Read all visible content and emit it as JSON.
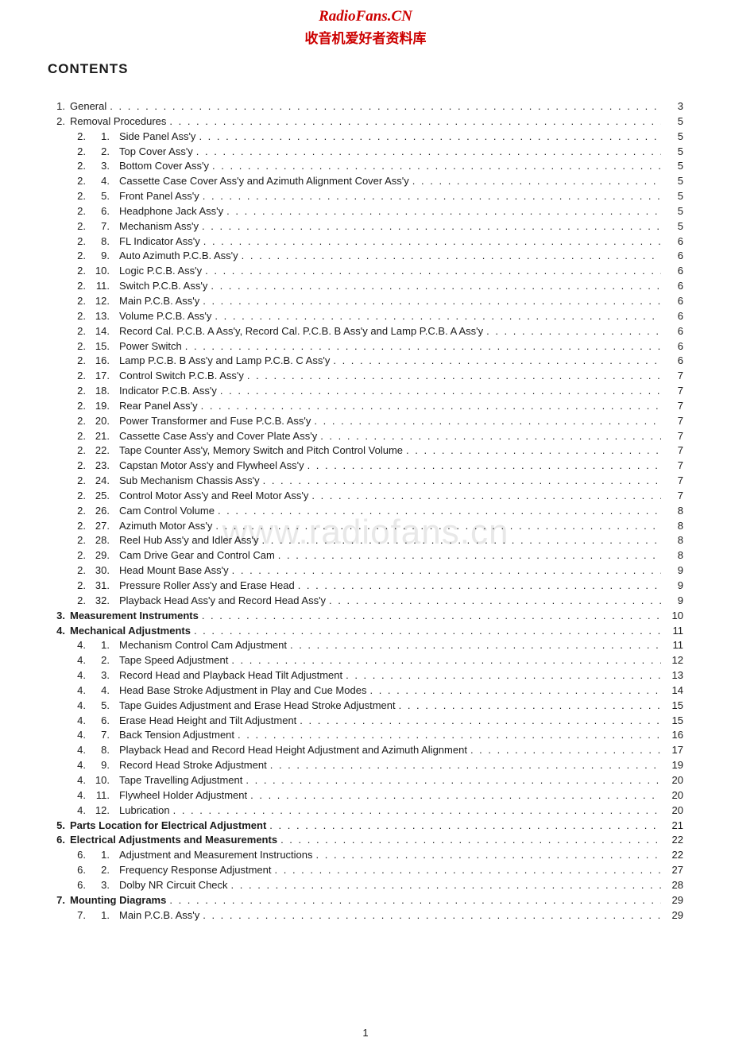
{
  "watermark": {
    "site": "RadioFans.CN",
    "subtitle": "收音机爱好者资料库",
    "mid": "www.radiofans.cn"
  },
  "heading": "CONTENTS",
  "page_number": "1",
  "dots": ". . . . . . . . . . . . . . . . . . . . . . . . . . . . . . . . . . . . . . . . . . . . . . . . . . . . . . . . . . . . . . . . . . . . . . . . . . . . . . . . . . . . . . . . . . . . . . . . . . . . . . . . . . . . . . . . . . . . . . . . . . . . . .",
  "toc": [
    {
      "type": "main",
      "num": "1.",
      "title": "General",
      "page": "3",
      "bold": false
    },
    {
      "type": "main",
      "num": "2.",
      "title": "Removal Procedures",
      "page": "5",
      "bold": false
    },
    {
      "type": "sub",
      "sec": "2.",
      "sub": "1.",
      "title": "Side Panel Ass'y",
      "page": "5"
    },
    {
      "type": "sub",
      "sec": "2.",
      "sub": "2.",
      "title": "Top Cover Ass'y",
      "page": "5"
    },
    {
      "type": "sub",
      "sec": "2.",
      "sub": "3.",
      "title": "Bottom Cover Ass'y",
      "page": "5"
    },
    {
      "type": "sub",
      "sec": "2.",
      "sub": "4.",
      "title": "Cassette Case Cover Ass'y and Azimuth Alignment Cover Ass'y",
      "page": "5"
    },
    {
      "type": "sub",
      "sec": "2.",
      "sub": "5.",
      "title": "Front Panel Ass'y",
      "page": "5"
    },
    {
      "type": "sub",
      "sec": "2.",
      "sub": "6.",
      "title": "Headphone Jack Ass'y",
      "page": "5"
    },
    {
      "type": "sub",
      "sec": "2.",
      "sub": "7.",
      "title": "Mechanism Ass'y",
      "page": "5"
    },
    {
      "type": "sub",
      "sec": "2.",
      "sub": "8.",
      "title": "FL Indicator Ass'y",
      "page": "6"
    },
    {
      "type": "sub",
      "sec": "2.",
      "sub": "9.",
      "title": "Auto Azimuth P.C.B. Ass'y",
      "page": "6"
    },
    {
      "type": "sub",
      "sec": "2.",
      "sub": "10.",
      "title": "Logic P.C.B. Ass'y",
      "page": "6"
    },
    {
      "type": "sub",
      "sec": "2.",
      "sub": "11.",
      "title": "Switch P.C.B. Ass'y",
      "page": "6"
    },
    {
      "type": "sub",
      "sec": "2.",
      "sub": "12.",
      "title": "Main P.C.B. Ass'y",
      "page": "6"
    },
    {
      "type": "sub",
      "sec": "2.",
      "sub": "13.",
      "title": "Volume P.C.B. Ass'y",
      "page": "6"
    },
    {
      "type": "sub",
      "sec": "2.",
      "sub": "14.",
      "title": "Record Cal. P.C.B. A Ass'y, Record Cal. P.C.B. B Ass'y and Lamp P.C.B. A Ass'y",
      "page": "6"
    },
    {
      "type": "sub",
      "sec": "2.",
      "sub": "15.",
      "title": "Power Switch",
      "page": "6"
    },
    {
      "type": "sub",
      "sec": "2.",
      "sub": "16.",
      "title": "Lamp P.C.B. B Ass'y and Lamp P.C.B. C Ass'y",
      "page": "6"
    },
    {
      "type": "sub",
      "sec": "2.",
      "sub": "17.",
      "title": "Control Switch P.C.B. Ass'y",
      "page": "7"
    },
    {
      "type": "sub",
      "sec": "2.",
      "sub": "18.",
      "title": "Indicator P.C.B. Ass'y",
      "page": "7"
    },
    {
      "type": "sub",
      "sec": "2.",
      "sub": "19.",
      "title": "Rear Panel Ass'y",
      "page": "7"
    },
    {
      "type": "sub",
      "sec": "2.",
      "sub": "20.",
      "title": "Power Transformer and Fuse P.C.B. Ass'y",
      "page": "7"
    },
    {
      "type": "sub",
      "sec": "2.",
      "sub": "21.",
      "title": "Cassette Case Ass'y and Cover Plate Ass'y",
      "page": "7"
    },
    {
      "type": "sub",
      "sec": "2.",
      "sub": "22.",
      "title": "Tape Counter Ass'y, Memory Switch and Pitch Control Volume",
      "page": "7"
    },
    {
      "type": "sub",
      "sec": "2.",
      "sub": "23.",
      "title": "Capstan Motor Ass'y and Flywheel Ass'y",
      "page": "7"
    },
    {
      "type": "sub",
      "sec": "2.",
      "sub": "24.",
      "title": "Sub Mechanism Chassis Ass'y",
      "page": "7"
    },
    {
      "type": "sub",
      "sec": "2.",
      "sub": "25.",
      "title": "Control Motor Ass'y and Reel Motor Ass'y",
      "page": "7"
    },
    {
      "type": "sub",
      "sec": "2.",
      "sub": "26.",
      "title": "Cam Control Volume",
      "page": "8"
    },
    {
      "type": "sub",
      "sec": "2.",
      "sub": "27.",
      "title": "Azimuth Motor Ass'y",
      "page": "8"
    },
    {
      "type": "sub",
      "sec": "2.",
      "sub": "28.",
      "title": "Reel Hub Ass'y and Idler Ass'y",
      "page": "8"
    },
    {
      "type": "sub",
      "sec": "2.",
      "sub": "29.",
      "title": "Cam Drive Gear and Control Cam",
      "page": "8"
    },
    {
      "type": "sub",
      "sec": "2.",
      "sub": "30.",
      "title": "Head Mount Base Ass'y",
      "page": "9"
    },
    {
      "type": "sub",
      "sec": "2.",
      "sub": "31.",
      "title": "Pressure Roller Ass'y and Erase Head",
      "page": "9"
    },
    {
      "type": "sub",
      "sec": "2.",
      "sub": "32.",
      "title": "Playback Head Ass'y and Record Head Ass'y",
      "page": "9"
    },
    {
      "type": "main",
      "num": "3.",
      "title": "Measurement Instruments",
      "page": "10",
      "bold": true
    },
    {
      "type": "main",
      "num": "4.",
      "title": "Mechanical Adjustments",
      "page": "11",
      "bold": true
    },
    {
      "type": "sub",
      "sec": "4.",
      "sub": "1.",
      "title": "Mechanism Control Cam Adjustment",
      "page": "11"
    },
    {
      "type": "sub",
      "sec": "4.",
      "sub": "2.",
      "title": "Tape Speed Adjustment",
      "page": "12"
    },
    {
      "type": "sub",
      "sec": "4.",
      "sub": "3.",
      "title": "Record Head and Playback Head Tilt Adjustment",
      "page": "13"
    },
    {
      "type": "sub",
      "sec": "4.",
      "sub": "4.",
      "title": "Head Base Stroke Adjustment in Play and Cue Modes",
      "page": "14"
    },
    {
      "type": "sub",
      "sec": "4.",
      "sub": "5.",
      "title": "Tape Guides Adjustment and Erase Head Stroke Adjustment",
      "page": "15"
    },
    {
      "type": "sub",
      "sec": "4.",
      "sub": "6.",
      "title": "Erase Head Height and Tilt Adjustment",
      "page": "15"
    },
    {
      "type": "sub",
      "sec": "4.",
      "sub": "7.",
      "title": "Back Tension Adjustment",
      "page": "16"
    },
    {
      "type": "sub",
      "sec": "4.",
      "sub": "8.",
      "title": "Playback Head and Record Head Height Adjustment and Azimuth Alignment",
      "page": "17"
    },
    {
      "type": "sub",
      "sec": "4.",
      "sub": "9.",
      "title": "Record Head Stroke Adjustment",
      "page": "19"
    },
    {
      "type": "sub",
      "sec": "4.",
      "sub": "10.",
      "title": "Tape Travelling Adjustment",
      "page": "20"
    },
    {
      "type": "sub",
      "sec": "4.",
      "sub": "11.",
      "title": "Flywheel Holder Adjustment",
      "page": "20"
    },
    {
      "type": "sub",
      "sec": "4.",
      "sub": "12.",
      "title": "Lubrication",
      "page": "20"
    },
    {
      "type": "main",
      "num": "5.",
      "title": "Parts Location for Electrical Adjustment",
      "page": "21",
      "bold": true
    },
    {
      "type": "main",
      "num": "6.",
      "title": "Electrical Adjustments and Measurements",
      "page": "22",
      "bold": true
    },
    {
      "type": "sub",
      "sec": "6.",
      "sub": "1.",
      "title": "Adjustment and Measurement Instructions",
      "page": "22"
    },
    {
      "type": "sub",
      "sec": "6.",
      "sub": "2.",
      "title": "Frequency Response Adjustment",
      "page": "27"
    },
    {
      "type": "sub",
      "sec": "6.",
      "sub": "3.",
      "title": "Dolby NR Circuit Check",
      "page": "28"
    },
    {
      "type": "main",
      "num": "7.",
      "title": "Mounting Diagrams",
      "page": "29",
      "bold": true
    },
    {
      "type": "sub",
      "sec": "7.",
      "sub": "1.",
      "title": "Main P.C.B. Ass'y",
      "page": "29"
    }
  ]
}
